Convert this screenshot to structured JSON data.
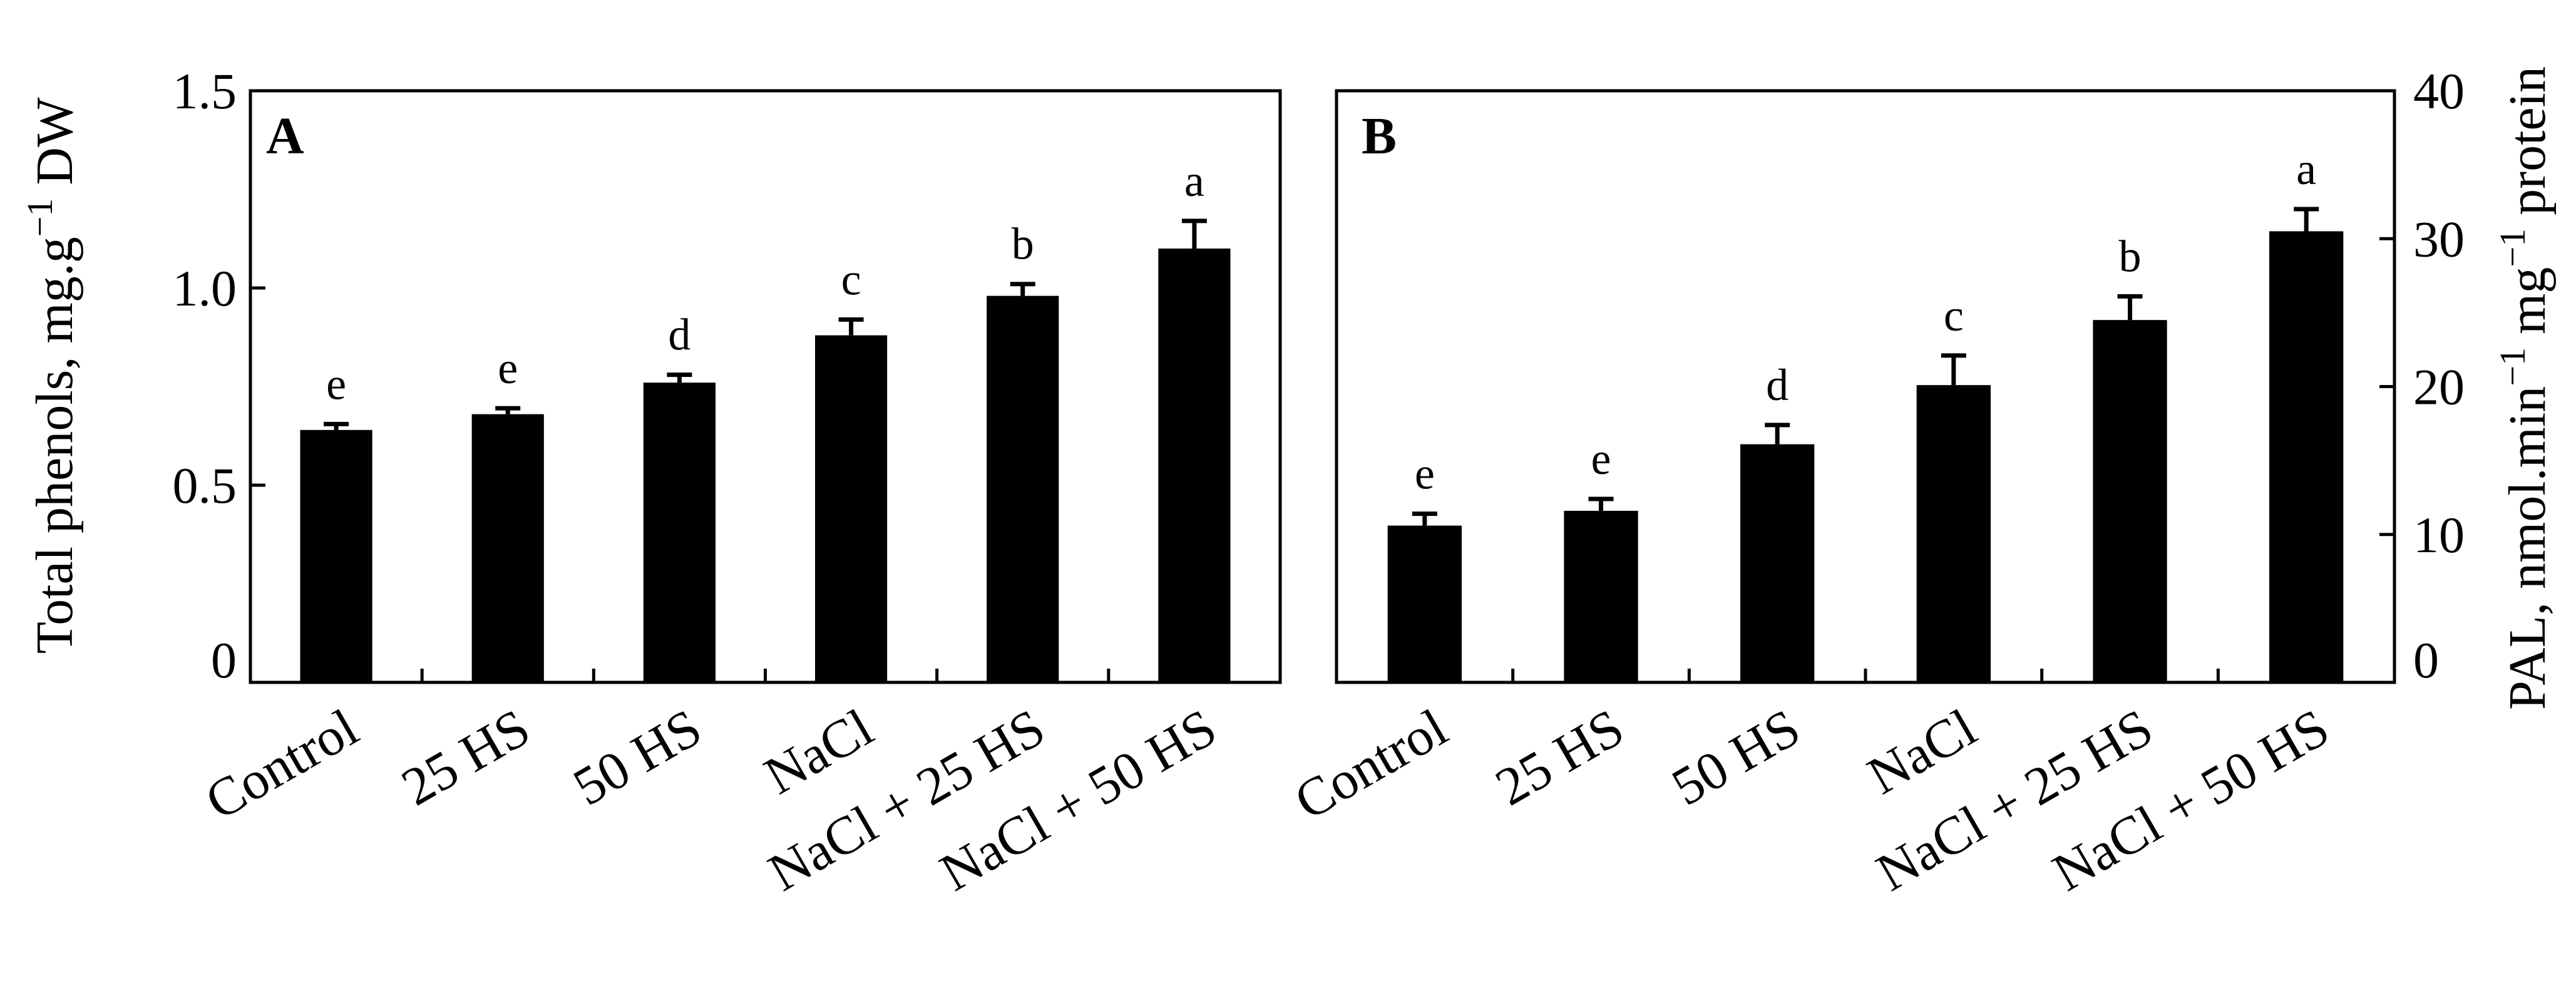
{
  "chart_data": [
    {
      "type": "bar",
      "panel_label": "A",
      "categories": [
        "Control",
        "25 HS",
        "50 HS",
        "NaCl",
        "NaCl + 25 HS",
        "NaCl + 50 HS"
      ],
      "values": [
        0.64,
        0.68,
        0.76,
        0.88,
        0.98,
        1.1
      ],
      "errors": [
        0.015,
        0.015,
        0.02,
        0.04,
        0.03,
        0.07
      ],
      "significance_letters": [
        "e",
        "e",
        "d",
        "c",
        "b",
        "a"
      ],
      "ylabel_main": "Total phenols, mg.g",
      "ylabel_sup": "−1",
      "ylabel_tail": " DW",
      "yticks": [
        "0",
        "0.5",
        "1.0",
        "1.5"
      ],
      "ylim": [
        0,
        1.5
      ],
      "ytick_values": [
        0,
        0.5,
        1.0,
        1.5
      ],
      "axis_side": "left",
      "color": "#000000"
    },
    {
      "type": "bar",
      "panel_label": "B",
      "categories": [
        "Control",
        "25 HS",
        "50 HS",
        "NaCl",
        "NaCl + 25 HS",
        "NaCl + 50 HS"
      ],
      "values": [
        10.6,
        11.6,
        16.1,
        20.1,
        24.5,
        30.5
      ],
      "errors": [
        0.8,
        0.8,
        1.3,
        2.0,
        1.6,
        1.5
      ],
      "significance_letters": [
        "e",
        "e",
        "d",
        "c",
        "b",
        "a"
      ],
      "ylabel_main": "PAL, nmol.min",
      "ylabel_sup1": "−1",
      "ylabel_mid": " mg",
      "ylabel_sup2": "−1",
      "ylabel_tail": " protein",
      "yticks": [
        "0",
        "10",
        "20",
        "30",
        "40"
      ],
      "ylim": [
        0,
        40
      ],
      "ytick_values": [
        0,
        10,
        20,
        30,
        40
      ],
      "axis_side": "right",
      "color": "#000000"
    }
  ]
}
